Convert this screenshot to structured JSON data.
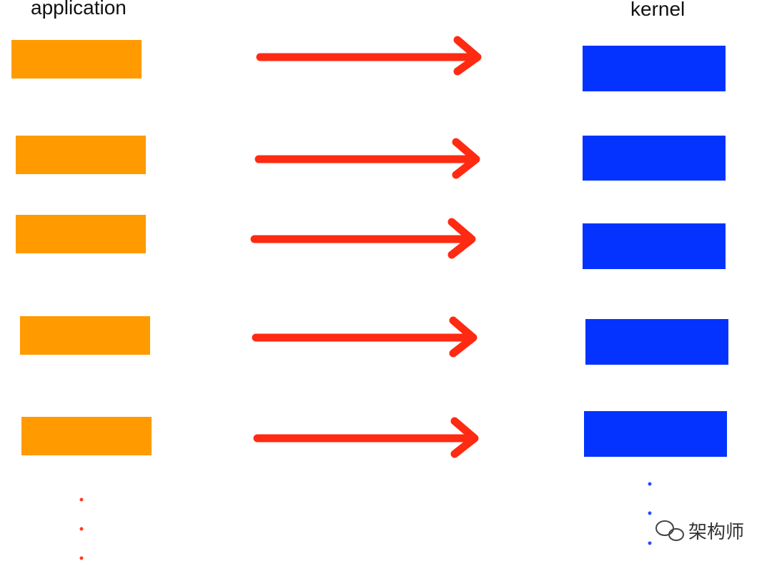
{
  "columns": {
    "left": {
      "label": "application"
    },
    "right": {
      "label": "kernel"
    }
  },
  "watermark": {
    "text": "架构师"
  }
}
